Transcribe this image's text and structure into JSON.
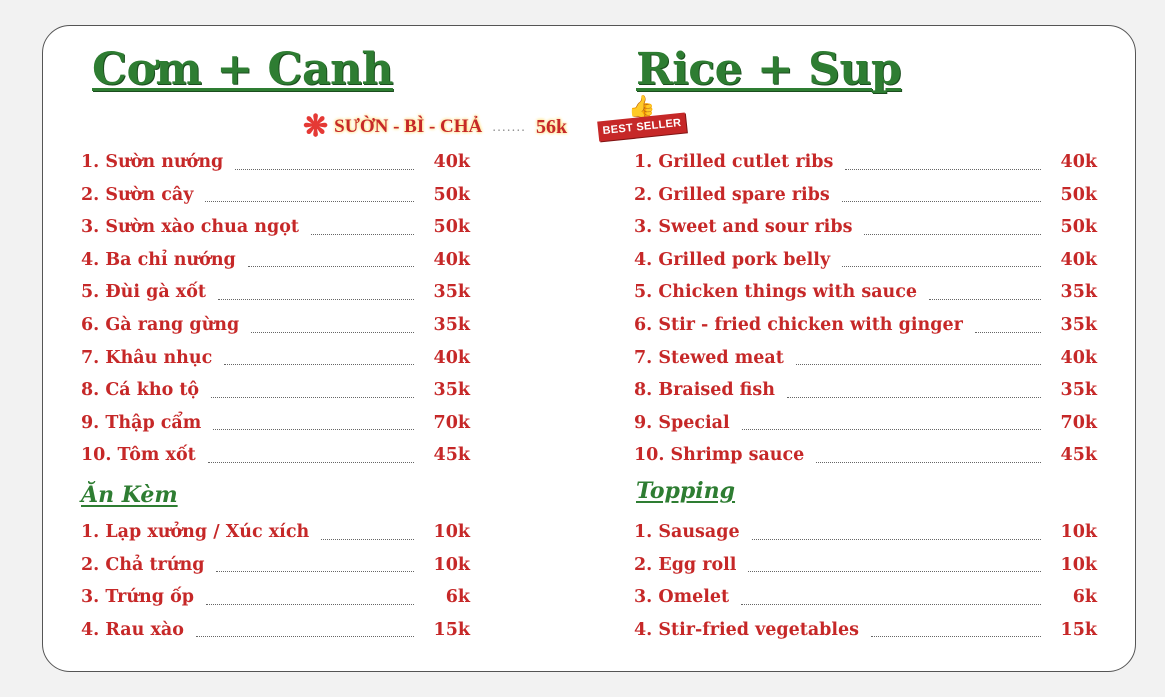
{
  "left": {
    "title": "Cơm + Canh",
    "mains": [
      {
        "label": "1. Sườn nướng",
        "price": "40k"
      },
      {
        "label": "2. Sườn cây",
        "price": "50k"
      },
      {
        "label": "3. Sườn xào chua ngọt",
        "price": "50k"
      },
      {
        "label": "4. Ba chỉ nướng",
        "price": "40k"
      },
      {
        "label": "5. Đùi gà xốt",
        "price": "35k"
      },
      {
        "label": "6. Gà rang gừng",
        "price": "35k"
      },
      {
        "label": "7. Khâu nhục",
        "price": "40k"
      },
      {
        "label": "8. Cá kho tộ",
        "price": "35k"
      },
      {
        "label": "9. Thập cẩm",
        "price": "70k"
      },
      {
        "label": "10. Tôm xốt",
        "price": "45k"
      }
    ],
    "sides_title": "Ăn Kèm",
    "sides": [
      {
        "label": "1. Lạp xưởng / Xúc xích",
        "price": "10k"
      },
      {
        "label": "2. Chả trứng",
        "price": "10k"
      },
      {
        "label": "3. Trứng ốp",
        "price": "6k"
      },
      {
        "label": "4. Rau xào",
        "price": "15k"
      }
    ]
  },
  "right": {
    "title": "Rice + Sup",
    "mains": [
      {
        "label": "1. Grilled cutlet ribs",
        "price": "40k"
      },
      {
        "label": "2. Grilled spare ribs",
        "price": "50k"
      },
      {
        "label": "3. Sweet and sour ribs",
        "price": "50k"
      },
      {
        "label": "4. Grilled pork belly",
        "price": "40k"
      },
      {
        "label": "5. Chicken things with sauce",
        "price": "35k"
      },
      {
        "label": "6. Stir - fried chicken with ginger",
        "price": "35k"
      },
      {
        "label": "7. Stewed meat",
        "price": "40k"
      },
      {
        "label": "8. Braised fish",
        "price": "35k"
      },
      {
        "label": "9.   Special",
        "price": "70k"
      },
      {
        "label": "10. Shrimp sauce",
        "price": "45k"
      }
    ],
    "sides_title": "Topping",
    "sides": [
      {
        "label": "1. Sausage",
        "price": "10k"
      },
      {
        "label": "2. Egg roll",
        "price": "10k"
      },
      {
        "label": "3. Omelet",
        "price": "6k"
      },
      {
        "label": "4. Stir-fried vegetables",
        "price": "15k"
      }
    ]
  },
  "promo": {
    "name": "SƯỜN - BÌ - CHẢ",
    "price": "56k",
    "badge": "BEST SELLER",
    "star_icon": "asterisk-icon",
    "thumb_icon": "thumbs-up-icon"
  },
  "colors": {
    "title_green": "#2e7d32",
    "item_red": "#c62828",
    "badge_red": "#c62828"
  }
}
